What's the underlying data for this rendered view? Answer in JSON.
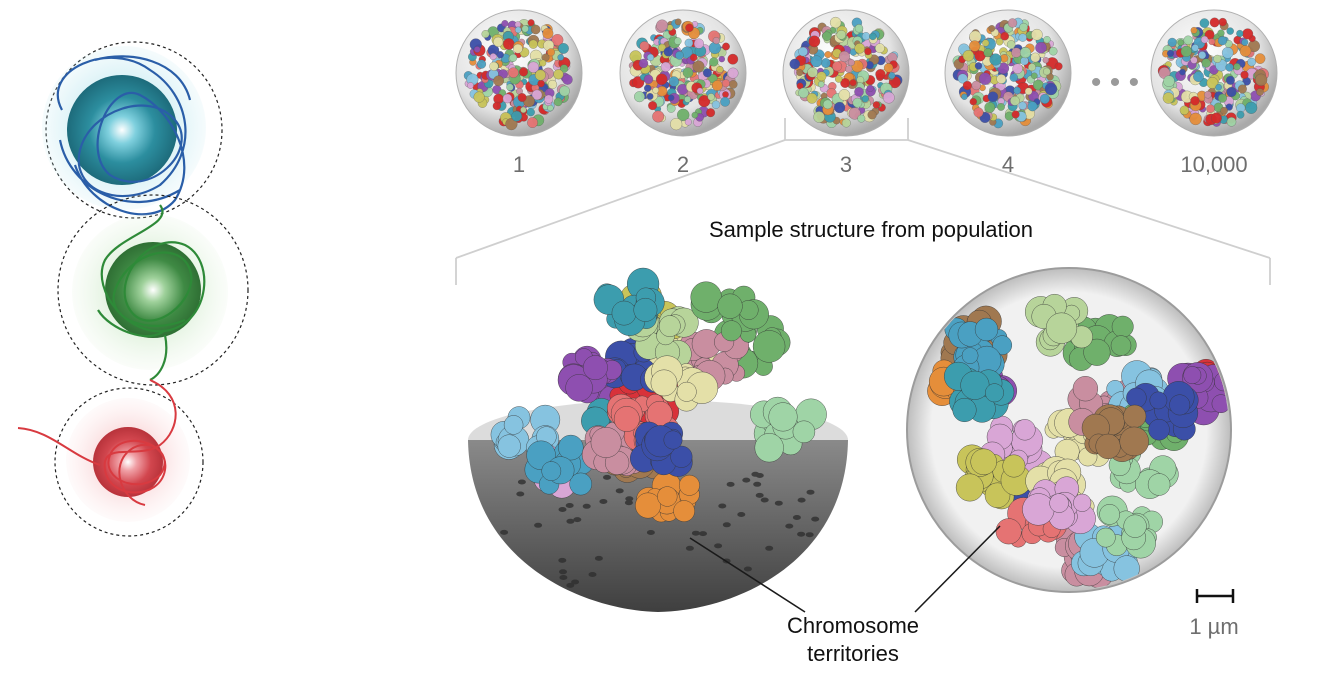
{
  "population": {
    "labels": [
      "1",
      "2",
      "3",
      "4",
      "10,000"
    ],
    "ellipsis": "• • •"
  },
  "sample_title": "Sample structure from population",
  "callout": {
    "line1": "Chromosome",
    "line2": "territories"
  },
  "scale_bar": {
    "label": "1 µm"
  },
  "colors": {
    "blue": "#2f5fa6",
    "cyan": "#5ab8cf",
    "green": "#3f9a4a",
    "red": "#d8323a",
    "shell_dark": "#6b6b6b",
    "shell_light": "#d8d8d8",
    "palette": [
      "#8e4fb0",
      "#3c9dae",
      "#e4e0a8",
      "#6fb06b",
      "#c98ea0",
      "#e57373",
      "#3b4fa8",
      "#a07850",
      "#86c3e0",
      "#d9a6d6",
      "#9fd4a6",
      "#c8c45a",
      "#e58e3a",
      "#4aa0c2",
      "#b7d49a"
    ]
  }
}
